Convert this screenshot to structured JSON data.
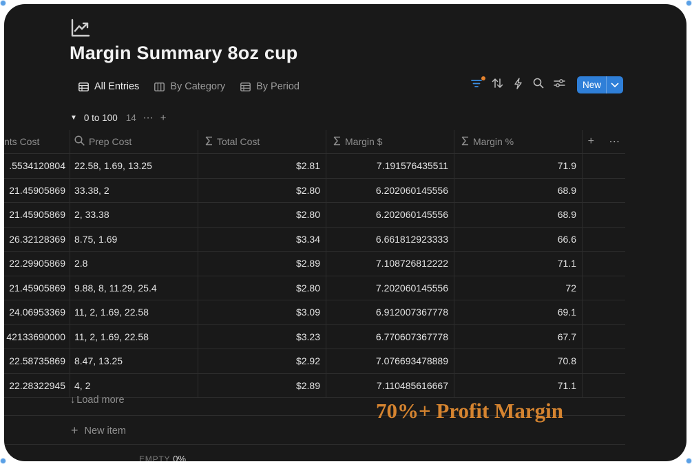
{
  "page": {
    "title": "Margin Summary 8oz cup"
  },
  "views": [
    {
      "label": "All Entries",
      "icon": "table-icon",
      "active": true
    },
    {
      "label": "By Category",
      "icon": "board-icon",
      "active": false
    },
    {
      "label": "By Period",
      "icon": "table-icon",
      "active": false
    }
  ],
  "toolbar": {
    "new_label": "New",
    "filter_active_color": "#e6832e",
    "accent": "#2f7fd8"
  },
  "group": {
    "name": "0 to 100",
    "count": "14"
  },
  "table": {
    "columns": [
      {
        "label": "nts Cost",
        "icon": ""
      },
      {
        "label": "Prep Cost",
        "icon": "search-icon"
      },
      {
        "label": "Total Cost",
        "icon": "sigma-icon"
      },
      {
        "label": "Margin $",
        "icon": "sigma-icon"
      },
      {
        "label": "Margin %",
        "icon": "sigma-icon"
      }
    ],
    "rows": [
      {
        "ing": ".5534120804",
        "prep": "22.58, 1.69, 13.25",
        "total": "$2.81",
        "margin": "7.191576435511",
        "pct": "71.9"
      },
      {
        "ing": "21.45905869",
        "prep": "33.38, 2",
        "total": "$2.80",
        "margin": "6.202060145556",
        "pct": "68.9"
      },
      {
        "ing": "21.45905869",
        "prep": "2, 33.38",
        "total": "$2.80",
        "margin": "6.202060145556",
        "pct": "68.9"
      },
      {
        "ing": "26.32128369",
        "prep": "8.75, 1.69",
        "total": "$3.34",
        "margin": "6.661812923333",
        "pct": "66.6"
      },
      {
        "ing": "22.29905869",
        "prep": "2.8",
        "total": "$2.89",
        "margin": "7.108726812222",
        "pct": "71.1"
      },
      {
        "ing": "21.45905869",
        "prep": "9.88, 8, 11.29, 25.4",
        "total": "$2.80",
        "margin": "7.202060145556",
        "pct": "72"
      },
      {
        "ing": "24.06953369",
        "prep": "11, 2, 1.69, 22.58",
        "total": "$3.09",
        "margin": "6.912007367778",
        "pct": "69.1"
      },
      {
        "ing": "42133690000",
        "prep": "11, 2, 1.69, 22.58",
        "total": "$3.23",
        "margin": "6.770607367778",
        "pct": "67.7"
      },
      {
        "ing": "22.58735869",
        "prep": "8.47, 13.25",
        "total": "$2.92",
        "margin": "7.076693478889",
        "pct": "70.8"
      },
      {
        "ing": "22.28322945",
        "prep": "4, 2",
        "total": "$2.89",
        "margin": "7.110485616667",
        "pct": "71.1"
      }
    ]
  },
  "load_more": "Load more",
  "new_item": "New item",
  "footer": {
    "calc_label": "EMPTY",
    "calc_value": "0%"
  },
  "overlay": {
    "text": "70%+ Profit Margin",
    "color": "#d58430"
  }
}
